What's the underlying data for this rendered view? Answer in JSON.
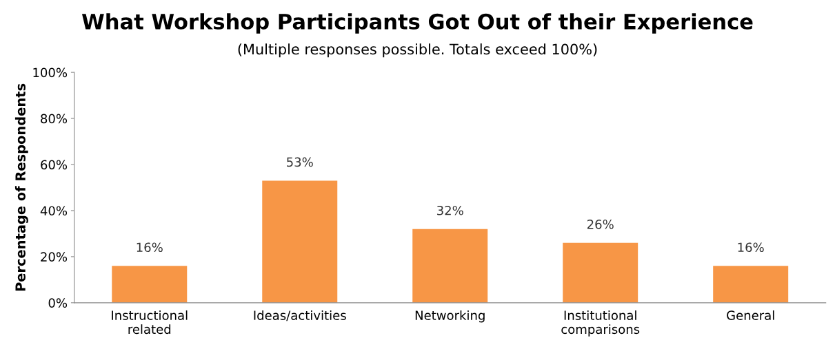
{
  "chart_data": {
    "type": "bar",
    "title": "What Workshop Participants Got Out of their Experience",
    "subtitle": "(Multiple responses possible. Totals exceed 100%)",
    "ylabel": "Percentage of Respondents",
    "categories": [
      "Instructional\nrelated",
      "Ideas/activities",
      "Networking",
      "Institutional\ncomparisons",
      "General"
    ],
    "values": [
      16,
      53,
      32,
      26,
      16
    ],
    "value_labels": [
      "16%",
      "53%",
      "32%",
      "26%",
      "16%"
    ],
    "color": "#f79646",
    "ylim": [
      0,
      100
    ],
    "yticks": [
      {
        "value": 0,
        "label": "0%"
      },
      {
        "value": 20,
        "label": "20%"
      },
      {
        "value": 40,
        "label": "40%"
      },
      {
        "value": 60,
        "label": "60%"
      },
      {
        "value": 80,
        "label": "80%"
      },
      {
        "value": 100,
        "label": "100%"
      }
    ],
    "grid": false,
    "legend": false
  }
}
